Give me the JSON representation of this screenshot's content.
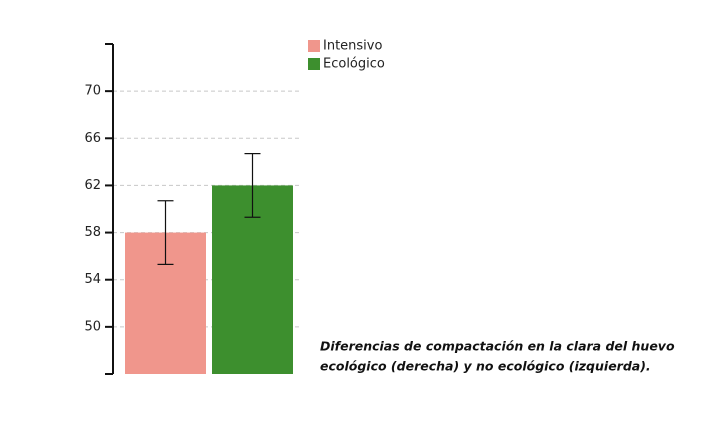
{
  "chart_data": {
    "type": "bar",
    "categories": [
      null
    ],
    "series": [
      {
        "name": "Intensivo",
        "color": "#f0968c",
        "values": [
          58
        ],
        "errors": [
          2.7
        ]
      },
      {
        "name": "Ecológico",
        "color": "#3d8f2e",
        "values": [
          62
        ],
        "errors": [
          2.7
        ]
      }
    ],
    "ylim": [
      46,
      74
    ],
    "yticks": [
      50,
      54,
      58,
      62,
      66,
      70
    ],
    "grid": true,
    "legend": "top-right",
    "annotation": [
      "Diferencias de compactación en la clara del huevo",
      "ecológico (derecha) y no ecológico (izquierda)."
    ]
  }
}
